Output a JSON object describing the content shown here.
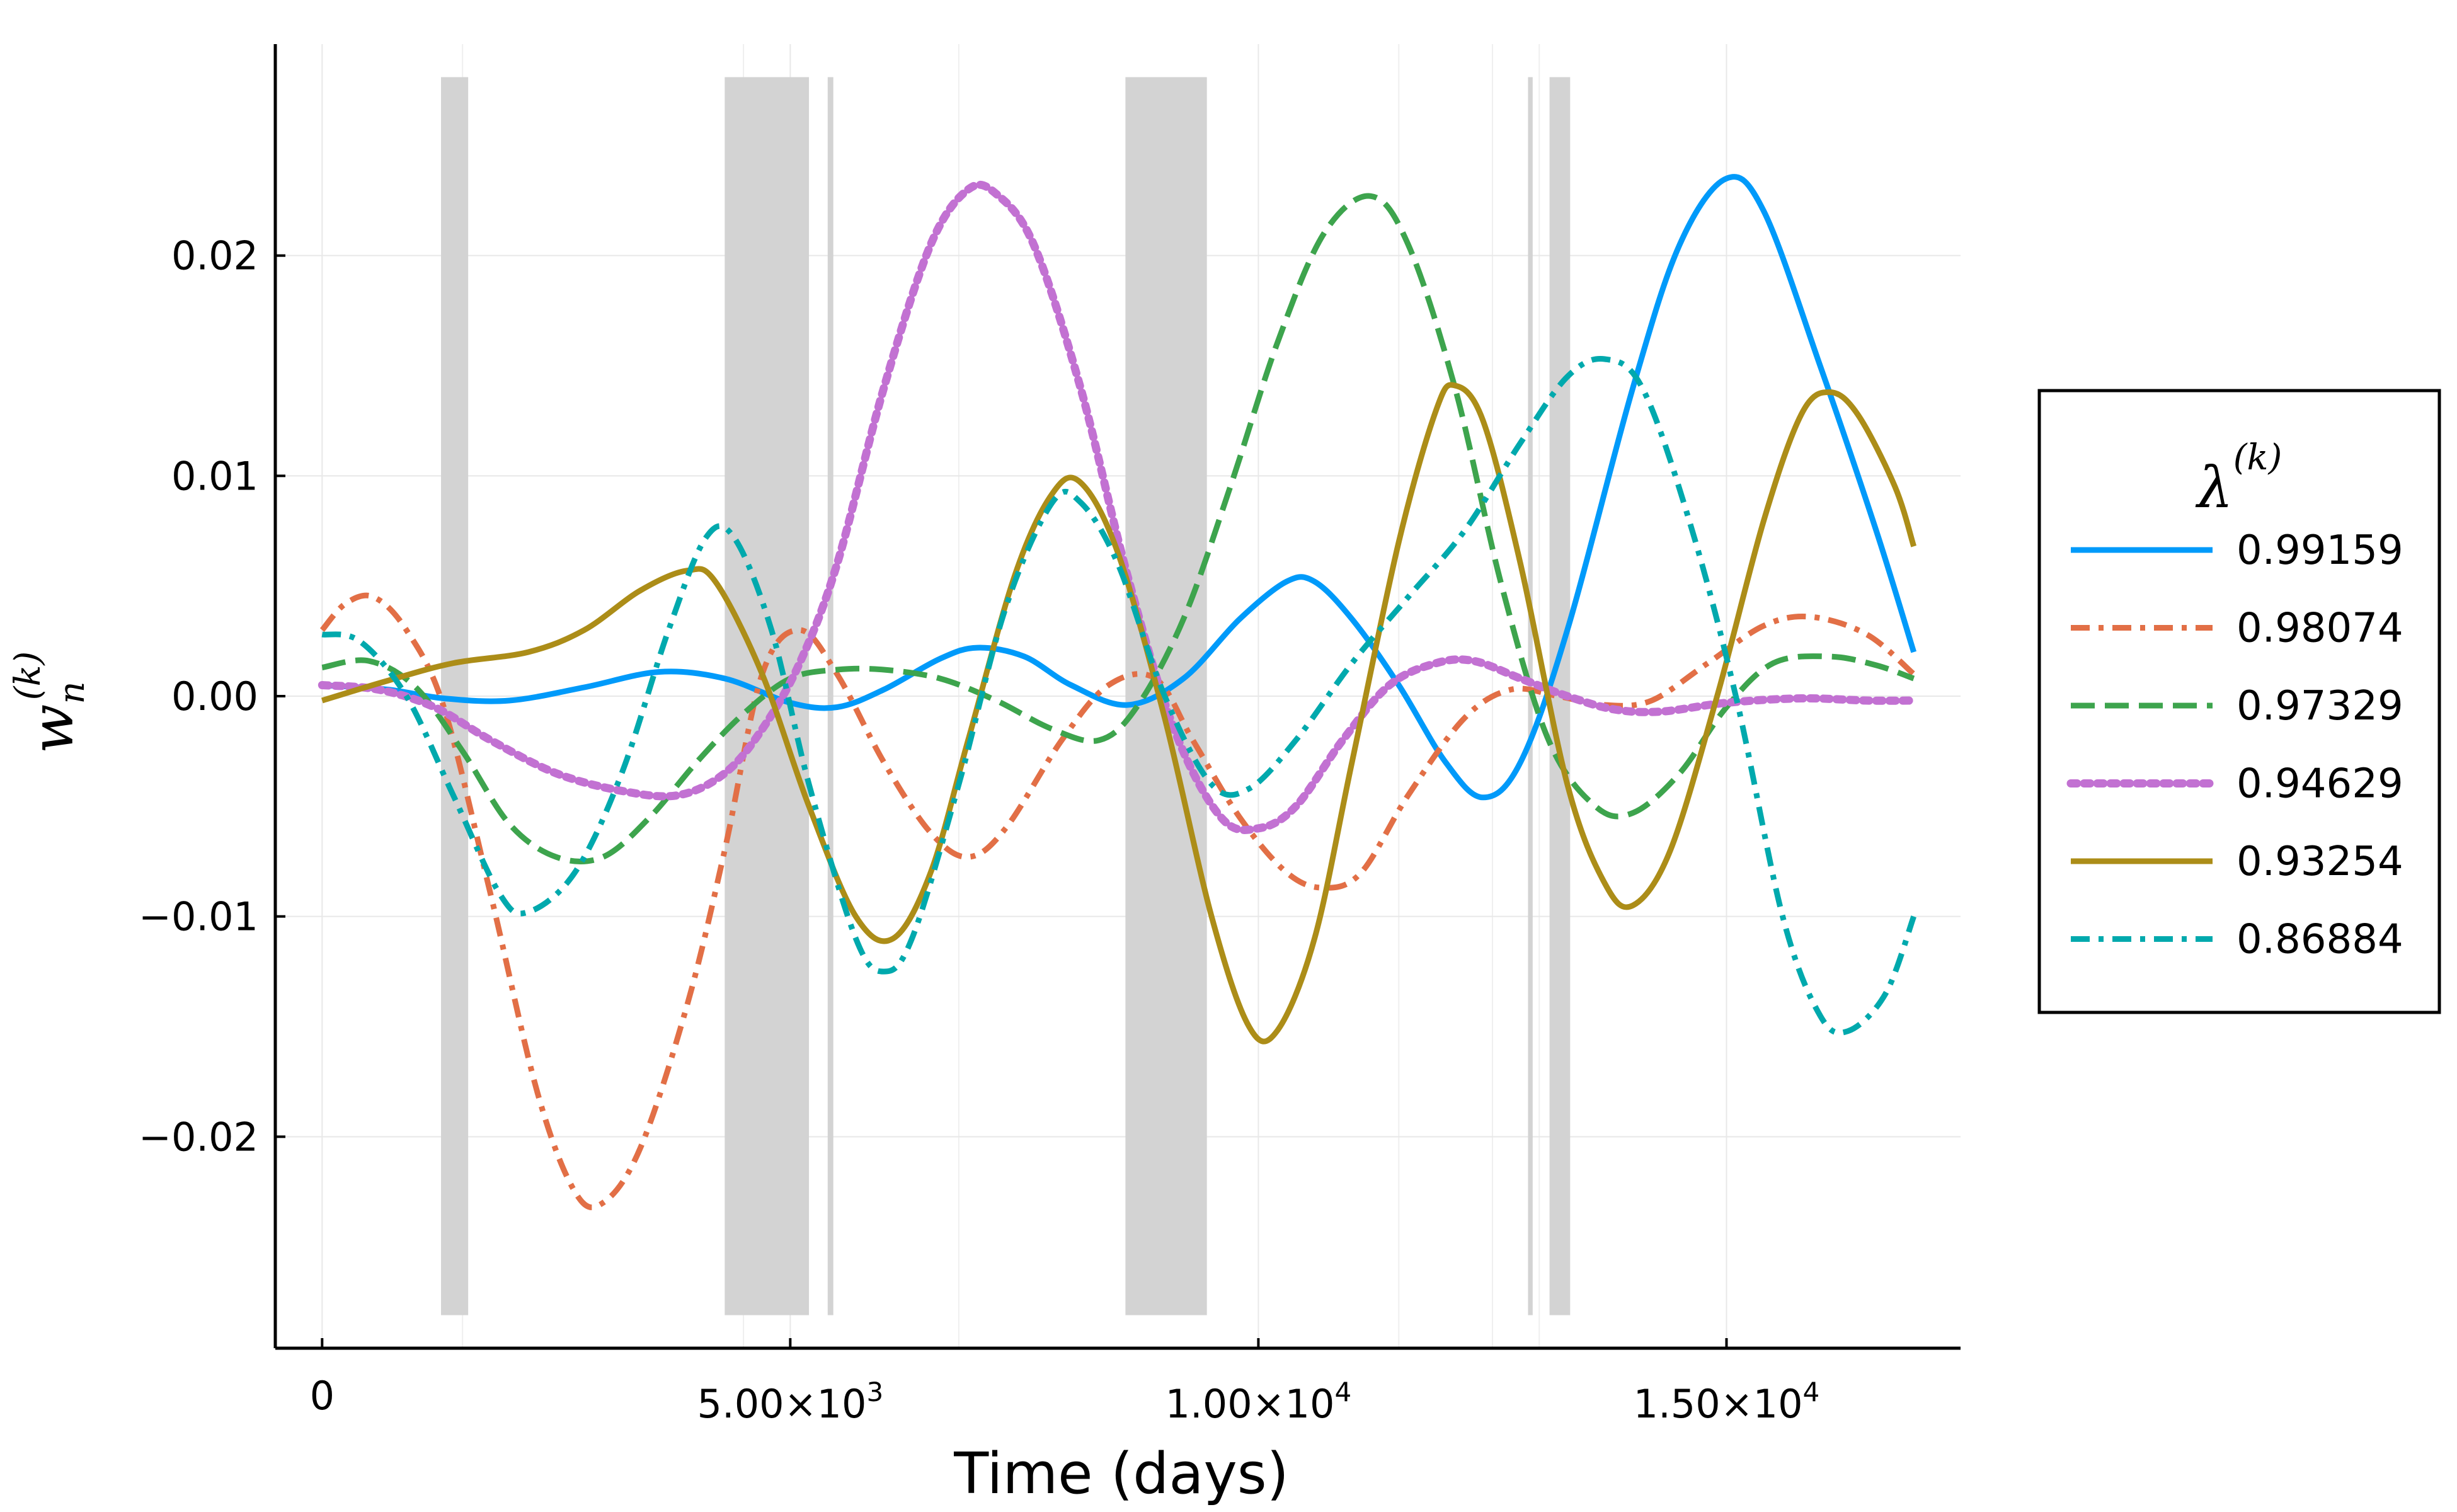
{
  "chart_data": {
    "type": "line",
    "xlabel": "Time (days)",
    "ylabel": {
      "base": "w",
      "sub": "n",
      "sup": "(k)"
    },
    "xlim": [
      -500,
      17500
    ],
    "ylim": [
      -0.0296,
      0.0296
    ],
    "x_ticks": [
      {
        "value": 0,
        "label": "0"
      },
      {
        "value": 5000,
        "mant": "5.00×10",
        "exp": "3"
      },
      {
        "value": 10000,
        "mant": "1.00×10",
        "exp": "4"
      },
      {
        "value": 15000,
        "mant": "1.50×10",
        "exp": "4"
      }
    ],
    "y_ticks": [
      {
        "value": 0.02,
        "label": "0.02"
      },
      {
        "value": 0.01,
        "label": "0.01"
      },
      {
        "value": 0.0,
        "label": "0.00"
      },
      {
        "value": -0.01,
        "label": "−0.01"
      },
      {
        "value": -0.02,
        "label": "−0.02"
      }
    ],
    "minor_x_gridlines": [
      1500,
      4500,
      6800,
      11500,
      12500,
      13000
    ],
    "grid": true,
    "shaded_regions": [
      {
        "x0": 1270,
        "x1": 1560
      },
      {
        "x0": 4300,
        "x1": 5200
      },
      {
        "x0": 5400,
        "x1": 5460
      },
      {
        "x0": 8580,
        "x1": 9450
      },
      {
        "x0": 12880,
        "x1": 12930
      },
      {
        "x0": 13110,
        "x1": 13330
      }
    ],
    "legend": {
      "title_base": "λ",
      "title_sup": "(k)",
      "position": "outside-right"
    },
    "series": [
      {
        "name": "0.99159",
        "color": "#009AFA",
        "dash": "solid",
        "points": [
          [
            0,
            0.0005
          ],
          [
            700,
            0.0003
          ],
          [
            1300,
            -0.0001
          ],
          [
            2000,
            -0.0002
          ],
          [
            2800,
            0.0004
          ],
          [
            3600,
            0.0011
          ],
          [
            4300,
            0.0008
          ],
          [
            5000,
            -0.0003
          ],
          [
            5500,
            -0.0005
          ],
          [
            6000,
            0.0003
          ],
          [
            6600,
            0.0017
          ],
          [
            7000,
            0.0022
          ],
          [
            7500,
            0.0018
          ],
          [
            8000,
            0.0005
          ],
          [
            8600,
            -0.0004
          ],
          [
            9200,
            0.0008
          ],
          [
            9800,
            0.0035
          ],
          [
            10300,
            0.0052
          ],
          [
            10600,
            0.0052
          ],
          [
            11000,
            0.0035
          ],
          [
            11500,
            0.0005
          ],
          [
            12000,
            -0.003
          ],
          [
            12400,
            -0.0046
          ],
          [
            12800,
            -0.003
          ],
          [
            13300,
            0.003
          ],
          [
            14000,
            0.014
          ],
          [
            14500,
            0.0205
          ],
          [
            15000,
            0.0235
          ],
          [
            15400,
            0.022
          ],
          [
            16000,
            0.015
          ],
          [
            16600,
            0.0075
          ],
          [
            17000,
            0.002
          ]
        ]
      },
      {
        "name": "0.98074",
        "color": "#E26F46",
        "dash": "dashdot",
        "points": [
          [
            0,
            0.003
          ],
          [
            250,
            0.0042
          ],
          [
            550,
            0.0045
          ],
          [
            900,
            0.003
          ],
          [
            1300,
            -0.0005
          ],
          [
            1800,
            -0.009
          ],
          [
            2300,
            -0.018
          ],
          [
            2700,
            -0.0225
          ],
          [
            3000,
            -0.023
          ],
          [
            3400,
            -0.0205
          ],
          [
            3900,
            -0.014
          ],
          [
            4300,
            -0.007
          ],
          [
            4700,
            0.001
          ],
          [
            5100,
            0.003
          ],
          [
            5500,
            0.001
          ],
          [
            6000,
            -0.003
          ],
          [
            6500,
            -0.0062
          ],
          [
            6900,
            -0.0073
          ],
          [
            7300,
            -0.006
          ],
          [
            7900,
            -0.002
          ],
          [
            8400,
            0.0005
          ],
          [
            8900,
            0.0008
          ],
          [
            9300,
            -0.002
          ],
          [
            9800,
            -0.0055
          ],
          [
            10300,
            -0.008
          ],
          [
            10700,
            -0.0087
          ],
          [
            11100,
            -0.008
          ],
          [
            11600,
            -0.0045
          ],
          [
            12200,
            -0.001
          ],
          [
            12700,
            0.0003
          ],
          [
            13200,
            0.0
          ],
          [
            13700,
            -0.0004
          ],
          [
            14200,
            -0.0002
          ],
          [
            14800,
            0.0015
          ],
          [
            15400,
            0.0032
          ],
          [
            15900,
            0.0036
          ],
          [
            16500,
            0.0028
          ],
          [
            17000,
            0.001
          ]
        ]
      },
      {
        "name": "0.97329",
        "color": "#3DA44D",
        "dash": "dash",
        "points": [
          [
            0,
            0.0013
          ],
          [
            500,
            0.0016
          ],
          [
            1000,
            0.0004
          ],
          [
            1500,
            -0.0025
          ],
          [
            2000,
            -0.0058
          ],
          [
            2500,
            -0.0073
          ],
          [
            3000,
            -0.0073
          ],
          [
            3500,
            -0.0055
          ],
          [
            4000,
            -0.003
          ],
          [
            4500,
            -0.0008
          ],
          [
            5000,
            0.0008
          ],
          [
            5500,
            0.0012
          ],
          [
            6000,
            0.0012
          ],
          [
            6600,
            0.0008
          ],
          [
            7200,
            -0.0002
          ],
          [
            7800,
            -0.0015
          ],
          [
            8300,
            -0.002
          ],
          [
            8700,
            -0.0005
          ],
          [
            9200,
            0.0035
          ],
          [
            9700,
            0.0095
          ],
          [
            10200,
            0.016
          ],
          [
            10700,
            0.021
          ],
          [
            11200,
            0.0227
          ],
          [
            11600,
            0.0205
          ],
          [
            12100,
            0.014
          ],
          [
            12600,
            0.005
          ],
          [
            13100,
            -0.002
          ],
          [
            13600,
            -0.005
          ],
          [
            14000,
            -0.0053
          ],
          [
            14500,
            -0.0035
          ],
          [
            15000,
            -0.0005
          ],
          [
            15500,
            0.0015
          ],
          [
            16100,
            0.0018
          ],
          [
            16600,
            0.0014
          ],
          [
            17000,
            0.0008
          ]
        ]
      },
      {
        "name": "0.94629",
        "color": "#C271D2",
        "dash": "dot",
        "points": [
          [
            0,
            0.0005
          ],
          [
            600,
            0.0003
          ],
          [
            1200,
            -0.0005
          ],
          [
            1800,
            -0.002
          ],
          [
            2500,
            -0.0035
          ],
          [
            3200,
            -0.0043
          ],
          [
            3800,
            -0.0045
          ],
          [
            4300,
            -0.0035
          ],
          [
            4700,
            -0.0015
          ],
          [
            5100,
            0.0015
          ],
          [
            5500,
            0.006
          ],
          [
            6000,
            0.014
          ],
          [
            6500,
            0.0205
          ],
          [
            6900,
            0.023
          ],
          [
            7200,
            0.0228
          ],
          [
            7600,
            0.0205
          ],
          [
            8100,
            0.014
          ],
          [
            8600,
            0.0055
          ],
          [
            9100,
            -0.0015
          ],
          [
            9600,
            -0.0055
          ],
          [
            10000,
            -0.006
          ],
          [
            10400,
            -0.005
          ],
          [
            10900,
            -0.002
          ],
          [
            11400,
            0.0005
          ],
          [
            11900,
            0.0015
          ],
          [
            12300,
            0.0016
          ],
          [
            12800,
            0.0008
          ],
          [
            13300,
            0.0
          ],
          [
            13800,
            -0.0006
          ],
          [
            14300,
            -0.0007
          ],
          [
            15000,
            -0.0003
          ],
          [
            15800,
            -0.0001
          ],
          [
            16500,
            -0.0002
          ],
          [
            17000,
            -0.0002
          ]
        ]
      },
      {
        "name": "0.93254",
        "color": "#AC8D18",
        "dash": "solid",
        "points": [
          [
            0,
            -0.0002
          ],
          [
            700,
            0.0007
          ],
          [
            1400,
            0.0015
          ],
          [
            2200,
            0.002
          ],
          [
            2800,
            0.003
          ],
          [
            3400,
            0.0048
          ],
          [
            3900,
            0.0057
          ],
          [
            4200,
            0.0052
          ],
          [
            4700,
            0.001
          ],
          [
            5200,
            -0.005
          ],
          [
            5700,
            -0.01
          ],
          [
            6100,
            -0.011
          ],
          [
            6500,
            -0.008
          ],
          [
            6900,
            -0.002
          ],
          [
            7400,
            0.0055
          ],
          [
            7800,
            0.0092
          ],
          [
            8100,
            0.0097
          ],
          [
            8500,
            0.0065
          ],
          [
            9000,
            -0.001
          ],
          [
            9500,
            -0.01
          ],
          [
            9900,
            -0.015
          ],
          [
            10200,
            -0.0152
          ],
          [
            10600,
            -0.011
          ],
          [
            11000,
            -0.003
          ],
          [
            11500,
            0.007
          ],
          [
            11900,
            0.013
          ],
          [
            12100,
            0.0141
          ],
          [
            12400,
            0.0125
          ],
          [
            12800,
            0.006
          ],
          [
            13300,
            -0.004
          ],
          [
            13700,
            -0.0085
          ],
          [
            14000,
            -0.0095
          ],
          [
            14400,
            -0.007
          ],
          [
            14900,
            0.0
          ],
          [
            15400,
            0.008
          ],
          [
            15800,
            0.0128
          ],
          [
            16100,
            0.0138
          ],
          [
            16400,
            0.0128
          ],
          [
            16800,
            0.0095
          ],
          [
            17000,
            0.0068
          ]
        ]
      },
      {
        "name": "0.86884",
        "color": "#00A9AD",
        "dash": "dashdot",
        "points": [
          [
            0,
            0.0028
          ],
          [
            400,
            0.0025
          ],
          [
            900,
            0.0
          ],
          [
            1400,
            -0.0045
          ],
          [
            1900,
            -0.009
          ],
          [
            2200,
            -0.0098
          ],
          [
            2700,
            -0.008
          ],
          [
            3200,
            -0.0035
          ],
          [
            3700,
            0.003
          ],
          [
            4100,
            0.0072
          ],
          [
            4400,
            0.0072
          ],
          [
            4800,
            0.003
          ],
          [
            5200,
            -0.004
          ],
          [
            5700,
            -0.011
          ],
          [
            6000,
            -0.0125
          ],
          [
            6300,
            -0.011
          ],
          [
            6800,
            -0.004
          ],
          [
            7300,
            0.004
          ],
          [
            7800,
            0.0088
          ],
          [
            8100,
            0.0088
          ],
          [
            8500,
            0.006
          ],
          [
            9000,
            0.0
          ],
          [
            9500,
            -0.004
          ],
          [
            9900,
            -0.0042
          ],
          [
            10400,
            -0.002
          ],
          [
            11000,
            0.0015
          ],
          [
            11600,
            0.0045
          ],
          [
            12200,
            0.0075
          ],
          [
            12800,
            0.0115
          ],
          [
            13300,
            0.0145
          ],
          [
            13700,
            0.0153
          ],
          [
            14100,
            0.014
          ],
          [
            14600,
            0.008
          ],
          [
            15100,
            0.0
          ],
          [
            15600,
            -0.01
          ],
          [
            16000,
            -0.0145
          ],
          [
            16300,
            -0.0152
          ],
          [
            16700,
            -0.0135
          ],
          [
            17000,
            -0.01
          ]
        ]
      }
    ]
  }
}
